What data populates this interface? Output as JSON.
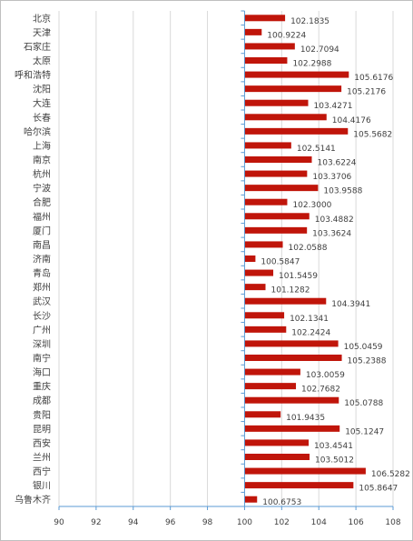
{
  "chart_data": {
    "type": "bar",
    "orientation": "horizontal",
    "title": "",
    "xlabel": "",
    "ylabel": "",
    "xlim": [
      90,
      108
    ],
    "x_ticks": [
      "90",
      "92",
      "94",
      "96",
      "98",
      "100",
      "102",
      "104",
      "106",
      "108"
    ],
    "grid": "vertical major gridlines",
    "legend": "none",
    "bar_color": "#C0150A",
    "bar_base": 100,
    "categories": [
      "北京",
      "天津",
      "石家庄",
      "太原",
      "呼和浩特",
      "沈阳",
      "大连",
      "长春",
      "哈尔滨",
      "上海",
      "南京",
      "杭州",
      "宁波",
      "合肥",
      "福州",
      "厦门",
      "南昌",
      "济南",
      "青岛",
      "郑州",
      "武汉",
      "长沙",
      "广州",
      "深圳",
      "南宁",
      "海口",
      "重庆",
      "成都",
      "贵阳",
      "昆明",
      "西安",
      "兰州",
      "西宁",
      "银川",
      "乌鲁木齐"
    ],
    "values": [
      102.1835,
      100.9224,
      102.7094,
      102.2988,
      105.6176,
      105.2176,
      103.4271,
      104.4176,
      105.5682,
      102.5141,
      103.6224,
      103.3706,
      103.9588,
      102.3,
      103.4882,
      103.3624,
      102.0588,
      100.5847,
      101.5459,
      101.1282,
      104.3941,
      102.1341,
      102.2424,
      105.0459,
      105.2388,
      103.0059,
      102.7682,
      105.0788,
      101.9435,
      105.1247,
      103.4541,
      103.5012,
      106.5282,
      105.8647,
      100.6753
    ],
    "value_labels": [
      "102.1835",
      "100.9224",
      "102.7094",
      "102.2988",
      "105.6176",
      "105.2176",
      "103.4271",
      "104.4176",
      "105.5682",
      "102.5141",
      "103.6224",
      "103.3706",
      "103.9588",
      "102.3000",
      "103.4882",
      "103.3624",
      "102.0588",
      "100.5847",
      "101.5459",
      "101.1282",
      "104.3941",
      "102.1341",
      "102.2424",
      "105.0459",
      "105.2388",
      "103.0059",
      "102.7682",
      "105.0788",
      "101.9435",
      "105.1247",
      "103.4541",
      "103.5012",
      "106.5282",
      "105.8647",
      "100.6753"
    ]
  }
}
